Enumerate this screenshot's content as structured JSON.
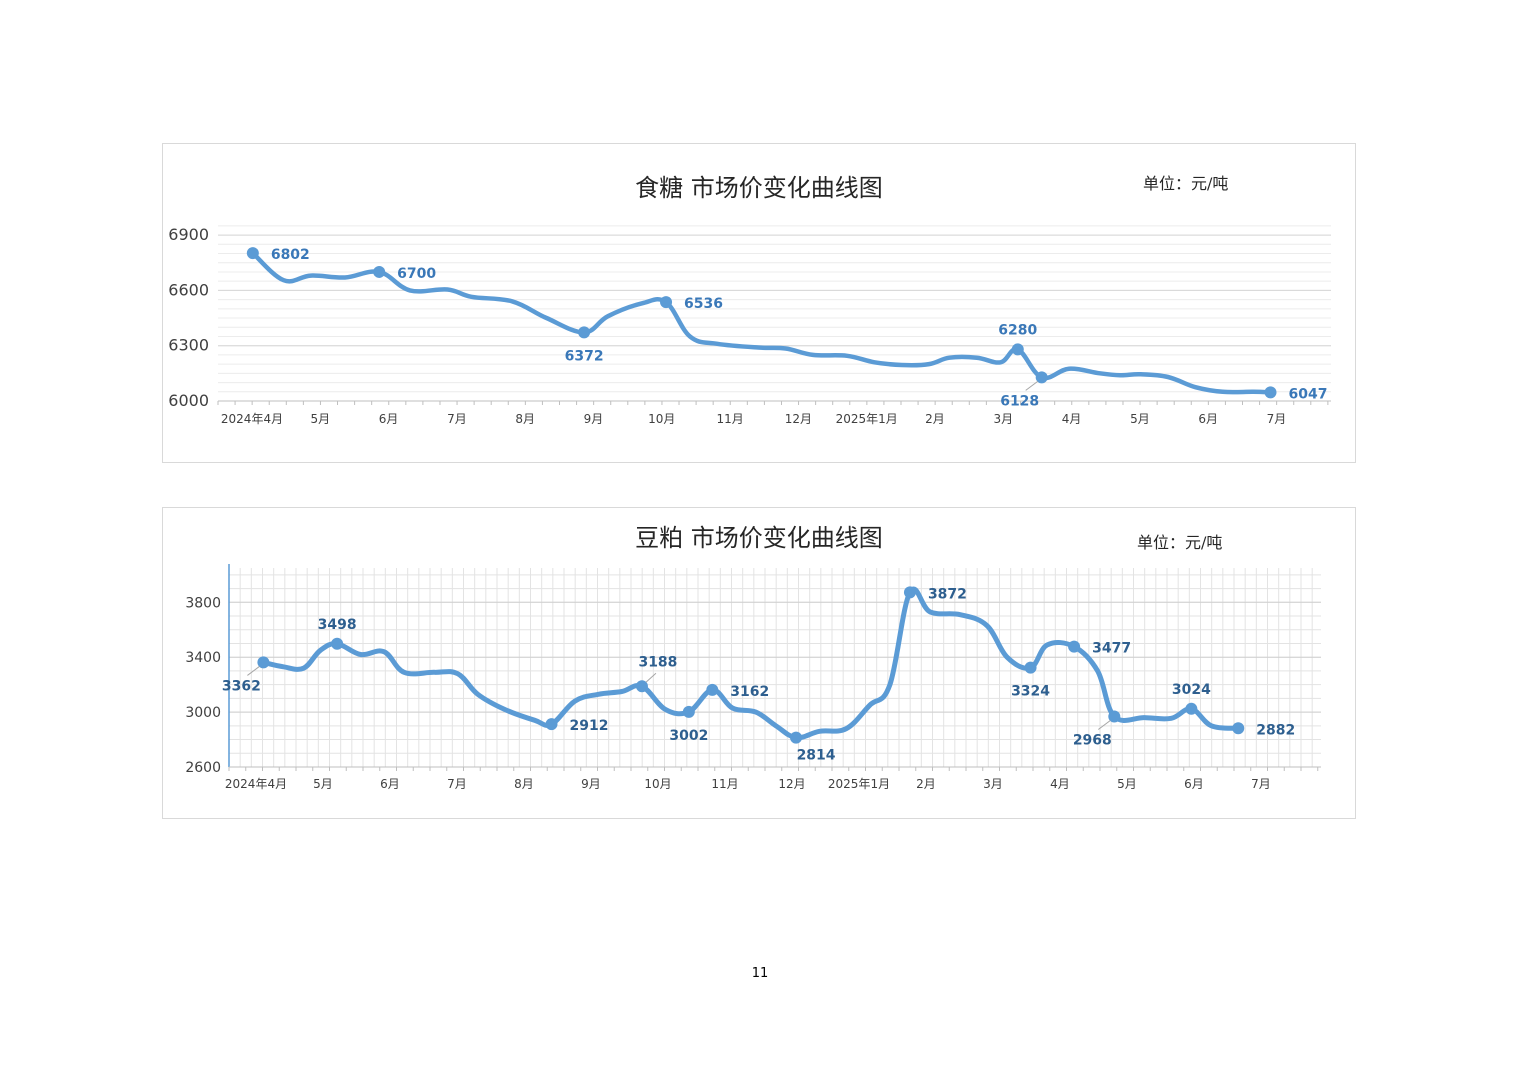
{
  "page_number": "11",
  "chart_data": [
    {
      "type": "line",
      "title": "食糖 市场价变化曲线图",
      "unit": "单位：元/吨",
      "ylim": [
        6000,
        6960
      ],
      "yticks": [
        6000,
        6300,
        6600,
        6900
      ],
      "xticks": [
        "2024年4月",
        "5月",
        "6月",
        "7月",
        "8月",
        "9月",
        "10月",
        "11月",
        "12月",
        "2025年1月",
        "2月",
        "3月",
        "4月",
        "5月",
        "6月",
        "7月"
      ],
      "grid": true,
      "color": "#5b9bd5",
      "series": [
        {
          "points": [
            [
              0.1,
              6802
            ],
            [
              0.55,
              6655
            ],
            [
              0.95,
              6680
            ],
            [
              1.45,
              6670
            ],
            [
              1.95,
              6700
            ],
            [
              2.4,
              6600
            ],
            [
              2.95,
              6605
            ],
            [
              3.3,
              6565
            ],
            [
              3.9,
              6540
            ],
            [
              4.4,
              6450
            ],
            [
              4.95,
              6372
            ],
            [
              5.3,
              6460
            ],
            [
              5.8,
              6530
            ],
            [
              6.15,
              6536
            ],
            [
              6.5,
              6350
            ],
            [
              6.9,
              6310
            ],
            [
              7.5,
              6290
            ],
            [
              7.9,
              6285
            ],
            [
              8.3,
              6250
            ],
            [
              8.8,
              6245
            ],
            [
              9.2,
              6210
            ],
            [
              9.6,
              6195
            ],
            [
              10.0,
              6200
            ],
            [
              10.3,
              6235
            ],
            [
              10.7,
              6235
            ],
            [
              11.05,
              6210
            ],
            [
              11.3,
              6280
            ],
            [
              11.65,
              6128
            ],
            [
              12.05,
              6175
            ],
            [
              12.5,
              6150
            ],
            [
              12.8,
              6140
            ],
            [
              13.1,
              6145
            ],
            [
              13.5,
              6130
            ],
            [
              13.9,
              6075
            ],
            [
              14.3,
              6050
            ],
            [
              14.75,
              6050
            ],
            [
              15.0,
              6047
            ]
          ]
        }
      ],
      "markers": [
        {
          "x": 0.1,
          "y": 6802,
          "label": "6802",
          "pos": "right"
        },
        {
          "x": 1.95,
          "y": 6700,
          "label": "6700",
          "pos": "right"
        },
        {
          "x": 4.95,
          "y": 6372,
          "label": "6372",
          "pos": "below"
        },
        {
          "x": 6.15,
          "y": 6536,
          "label": "6536",
          "pos": "right"
        },
        {
          "x": 11.3,
          "y": 6280,
          "label": "6280",
          "pos": "above"
        },
        {
          "x": 11.65,
          "y": 6128,
          "label": "6128",
          "pos": "below-left"
        },
        {
          "x": 15.0,
          "y": 6047,
          "label": "6047",
          "pos": "right"
        }
      ]
    },
    {
      "type": "line",
      "title": "豆粕 市场价变化曲线图",
      "unit": "单位：元/吨",
      "ylim": [
        2600,
        4050
      ],
      "yticks": [
        2600,
        3000,
        3400,
        3800
      ],
      "xticks": [
        "2024年4月",
        "5月",
        "6月",
        "7月",
        "8月",
        "9月",
        "10月",
        "11月",
        "12月",
        "2025年1月",
        "2月",
        "3月",
        "4月",
        "5月",
        "6月",
        "7月"
      ],
      "grid": true,
      "color": "#5b9bd5",
      "series": [
        {
          "points": [
            [
              0.2,
              3362
            ],
            [
              0.5,
              3330
            ],
            [
              0.8,
              3320
            ],
            [
              1.05,
              3450
            ],
            [
              1.3,
              3498
            ],
            [
              1.65,
              3420
            ],
            [
              2.0,
              3440
            ],
            [
              2.3,
              3290
            ],
            [
              2.75,
              3290
            ],
            [
              3.1,
              3280
            ],
            [
              3.4,
              3130
            ],
            [
              3.8,
              3020
            ],
            [
              4.25,
              2940
            ],
            [
              4.5,
              2912
            ],
            [
              4.85,
              3080
            ],
            [
              5.2,
              3130
            ],
            [
              5.55,
              3150
            ],
            [
              5.85,
              3188
            ],
            [
              6.2,
              3020
            ],
            [
              6.55,
              3002
            ],
            [
              6.9,
              3162
            ],
            [
              7.2,
              3030
            ],
            [
              7.55,
              3000
            ],
            [
              7.85,
              2900
            ],
            [
              8.15,
              2814
            ],
            [
              8.5,
              2860
            ],
            [
              8.9,
              2880
            ],
            [
              9.25,
              3050
            ],
            [
              9.55,
              3200
            ],
            [
              9.85,
              3872
            ],
            [
              10.15,
              3730
            ],
            [
              10.6,
              3710
            ],
            [
              11.0,
              3630
            ],
            [
              11.3,
              3400
            ],
            [
              11.65,
              3324
            ],
            [
              11.9,
              3490
            ],
            [
              12.3,
              3477
            ],
            [
              12.65,
              3300
            ],
            [
              12.9,
              2968
            ],
            [
              13.35,
              2960
            ],
            [
              13.75,
              2955
            ],
            [
              14.05,
              3024
            ],
            [
              14.35,
              2900
            ],
            [
              14.75,
              2882
            ]
          ]
        }
      ],
      "markers": [
        {
          "x": 0.2,
          "y": 3362,
          "label": "3362",
          "pos": "below-left"
        },
        {
          "x": 1.3,
          "y": 3498,
          "label": "3498",
          "pos": "above"
        },
        {
          "x": 4.5,
          "y": 2912,
          "label": "2912",
          "pos": "right"
        },
        {
          "x": 5.85,
          "y": 3188,
          "label": "3188",
          "pos": "above-right"
        },
        {
          "x": 6.55,
          "y": 3002,
          "label": "3002",
          "pos": "below"
        },
        {
          "x": 6.9,
          "y": 3162,
          "label": "3162",
          "pos": "right"
        },
        {
          "x": 8.15,
          "y": 2814,
          "label": "2814",
          "pos": "below-right"
        },
        {
          "x": 9.85,
          "y": 3872,
          "label": "3872",
          "pos": "right"
        },
        {
          "x": 11.65,
          "y": 3324,
          "label": "3324",
          "pos": "below"
        },
        {
          "x": 12.3,
          "y": 3477,
          "label": "3477",
          "pos": "right"
        },
        {
          "x": 12.9,
          "y": 2968,
          "label": "2968",
          "pos": "below-left"
        },
        {
          "x": 14.05,
          "y": 3024,
          "label": "3024",
          "pos": "above"
        },
        {
          "x": 14.75,
          "y": 2882,
          "label": "2882",
          "pos": "right"
        }
      ]
    }
  ]
}
